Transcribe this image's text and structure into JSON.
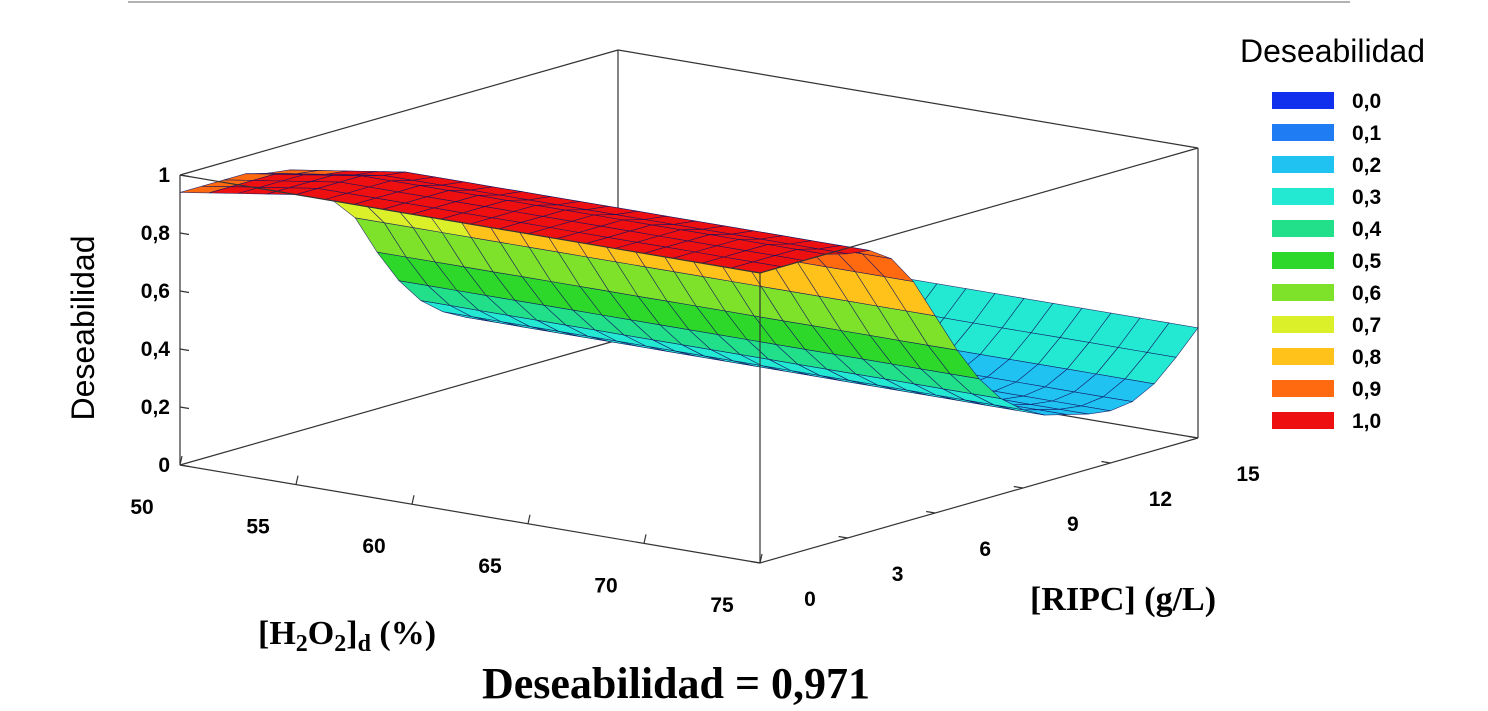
{
  "chart_data": {
    "type": "surface3d",
    "title": "",
    "zlabel": "Deseabilidad",
    "xlabel_parts": {
      "open": "[H",
      "sub1": "2",
      "mid": "O",
      "sub2": "2",
      "close": "]",
      "sub3": "d",
      "unit": " (%)"
    },
    "ylabel": "[RIPC] (g/L)",
    "x_ticks": [
      "50",
      "55",
      "60",
      "65",
      "70",
      "75"
    ],
    "y_ticks": [
      "0",
      "3",
      "6",
      "9",
      "12",
      "15"
    ],
    "z_ticks": [
      "0",
      "0,2",
      "0,4",
      "0,6",
      "0,8",
      "1"
    ],
    "xlim": [
      50,
      75
    ],
    "ylim": [
      0,
      15
    ],
    "zlim": [
      0,
      1
    ],
    "x_grid": [
      50,
      51.25,
      52.5,
      53.75,
      55,
      56.25,
      57.5,
      58.75,
      60,
      61.25,
      62.5,
      63.75,
      65,
      66.25,
      67.5,
      68.75,
      70,
      71.25,
      72.5,
      73.75,
      75
    ],
    "y_grid": [
      0,
      0.75,
      1.5,
      2.25,
      3,
      3.75,
      4.5,
      5.25,
      6,
      6.75,
      7.5,
      8.25,
      9,
      9.75,
      10.5,
      11.25,
      12,
      12.75,
      13.5,
      14.25,
      15
    ],
    "z_profile_vs_y": [
      1.0,
      1.0,
      1.0,
      1.0,
      0.98,
      0.97,
      0.92,
      0.82,
      0.68,
      0.54,
      0.42,
      0.33,
      0.27,
      0.23,
      0.21,
      0.19,
      0.18,
      0.19,
      0.23,
      0.3,
      0.38
    ],
    "legend": {
      "title": "Deseabilidad",
      "position": "right",
      "items": [
        {
          "label": "0,0",
          "color": "#1030ee"
        },
        {
          "label": "0,1",
          "color": "#1f7cf2"
        },
        {
          "label": "0,2",
          "color": "#20c2f2"
        },
        {
          "label": "0,3",
          "color": "#23e8d2"
        },
        {
          "label": "0,4",
          "color": "#22e08a"
        },
        {
          "label": "0,5",
          "color": "#2ed82a"
        },
        {
          "label": "0,6",
          "color": "#7ee22a"
        },
        {
          "label": "0,7",
          "color": "#dcf02a"
        },
        {
          "label": "0,8",
          "color": "#ffc21a"
        },
        {
          "label": "0,9",
          "color": "#ff6a10"
        },
        {
          "label": "1,0",
          "color": "#ee1010"
        }
      ]
    },
    "annotation": "Deseabilidad = 0,971"
  }
}
